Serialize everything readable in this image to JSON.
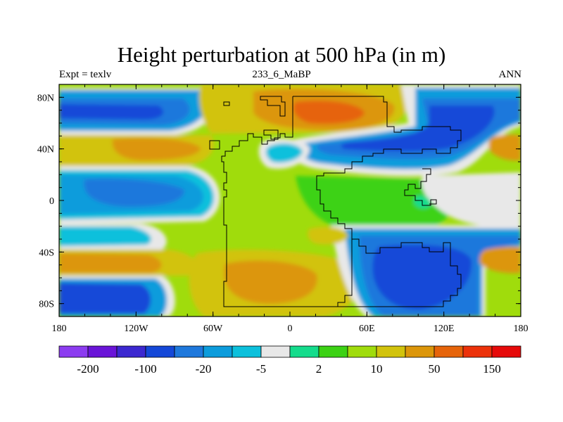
{
  "chart_data": {
    "type": "heatmap",
    "title": "Height perturbation at 500 hPa (in m)",
    "subtitle_left": "Expt = texlv",
    "subtitle_center": "233_6_MaBP",
    "subtitle_right": "ANN",
    "x_axis": {
      "range": [
        -180,
        180
      ],
      "ticks": [
        {
          "value": -180,
          "label": "180"
        },
        {
          "value": -120,
          "label": "120W"
        },
        {
          "value": -60,
          "label": "60W"
        },
        {
          "value": 0,
          "label": "0"
        },
        {
          "value": 60,
          "label": "60E"
        },
        {
          "value": 120,
          "label": "120E"
        },
        {
          "value": 180,
          "label": "180"
        }
      ]
    },
    "y_axis": {
      "range": [
        -90,
        90
      ],
      "ticks": [
        {
          "value": 80,
          "label": "80N"
        },
        {
          "value": 40,
          "label": "40N"
        },
        {
          "value": 0,
          "label": "0"
        },
        {
          "value": -40,
          "label": "40S"
        },
        {
          "value": -80,
          "label": "80S"
        }
      ]
    },
    "colorbar": {
      "colors": [
        "#8c3cf0",
        "#6a14d8",
        "#3c28d0",
        "#1448d8",
        "#1e78dc",
        "#0c9cdc",
        "#0cc0dc",
        "#e8e8e8",
        "#14dc8c",
        "#3cd214",
        "#a0dc0c",
        "#d2c30c",
        "#dc960a",
        "#e6640a",
        "#ec320a",
        "#e60a0a"
      ],
      "labels": [
        {
          "boundary": 1,
          "text": "-200"
        },
        {
          "boundary": 3,
          "text": "-100"
        },
        {
          "boundary": 5,
          "text": "-20"
        },
        {
          "boundary": 7,
          "text": "-5"
        },
        {
          "boundary": 9,
          "text": "2"
        },
        {
          "boundary": 11,
          "text": "10"
        },
        {
          "boundary": 13,
          "text": "50"
        },
        {
          "boundary": 15,
          "text": "150"
        }
      ]
    }
  }
}
